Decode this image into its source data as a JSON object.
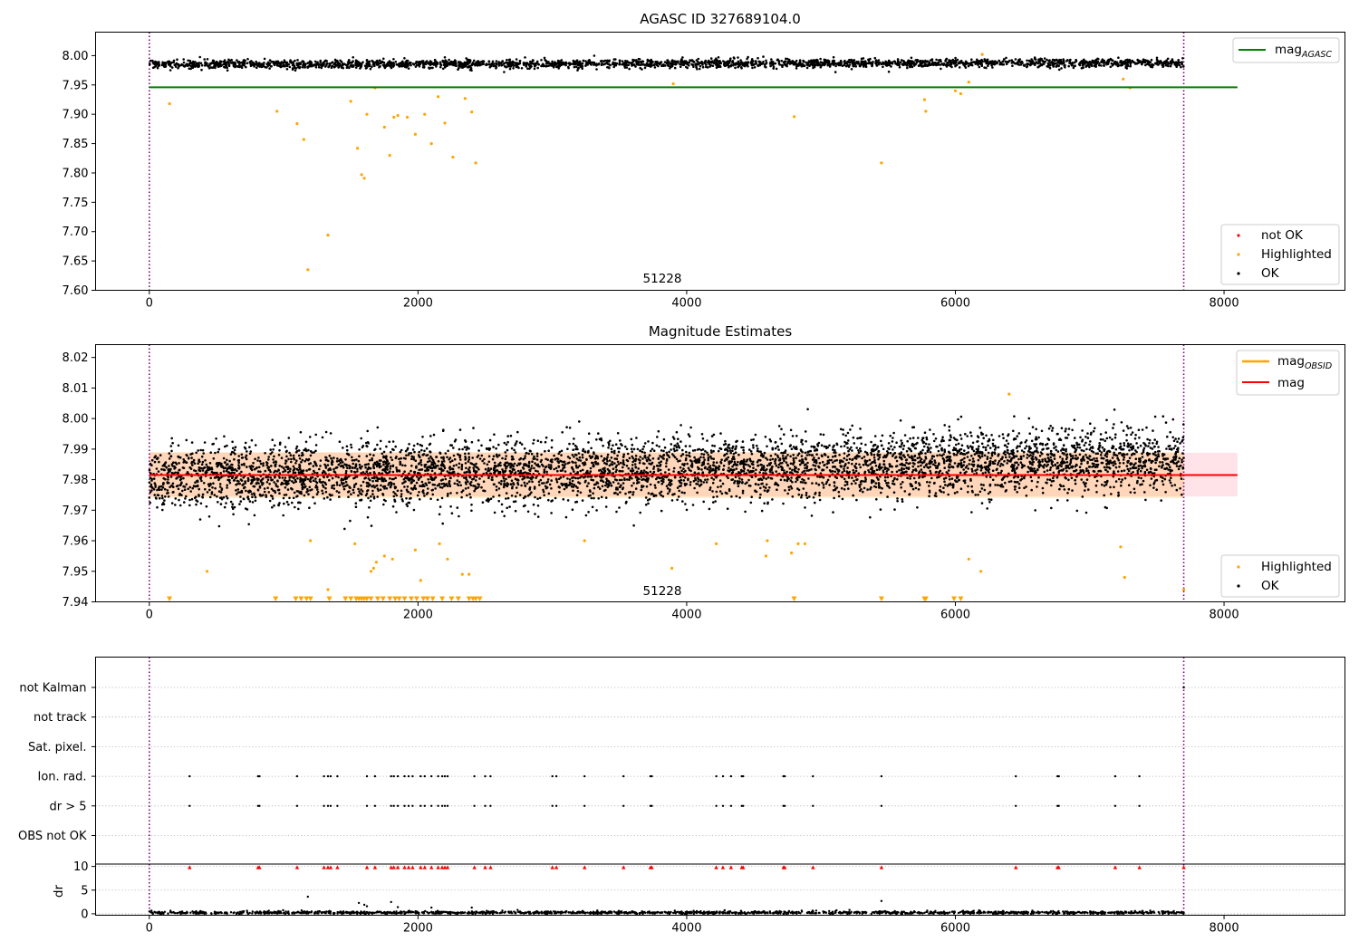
{
  "chart_data": [
    {
      "type": "scatter",
      "title": "AGASC ID 327689104.0",
      "xlabel": "",
      "ylabel": "",
      "xlim": [
        -400,
        8900
      ],
      "ylim": [
        7.6,
        8.04
      ],
      "xticks": [
        0,
        2000,
        4000,
        6000,
        8000
      ],
      "xtick_labels": [
        "0",
        "2000",
        "4000",
        "6000",
        "8000"
      ],
      "yticks": [
        7.6,
        7.65,
        7.7,
        7.75,
        7.8,
        7.85,
        7.9,
        7.95,
        8.0
      ],
      "ytick_labels": [
        "7.60",
        "7.65",
        "7.70",
        "7.75",
        "7.80",
        "7.85",
        "7.90",
        "7.95",
        "8.00"
      ],
      "grid": false,
      "vlines": [
        0,
        7700
      ],
      "vline_color": "#800080",
      "hline": {
        "name": "mag",
        "subscript": "AGASC",
        "y": 7.946,
        "x_range": [
          0,
          8100
        ],
        "color": "#008000"
      },
      "annotation": {
        "text": "51228",
        "x": 3850,
        "y": 7.62
      },
      "ok_band": {
        "center_start": 7.985,
        "center_end": 7.988,
        "half_width": 0.008,
        "x_range": [
          0,
          7700
        ],
        "count": 2600,
        "color": "#000000"
      },
      "highlighted_points": {
        "x": [
          150,
          950,
          1100,
          1150,
          1180,
          1330,
          1500,
          1550,
          1580,
          1600,
          1620,
          1680,
          1750,
          1790,
          1820,
          1850,
          1920,
          1980,
          2050,
          2100,
          2150,
          2200,
          2260,
          2350,
          2400,
          2430,
          3900,
          4800,
          5450,
          5770,
          5780,
          6000,
          6040,
          6100,
          6200,
          7250,
          7300
        ],
        "y": [
          7.918,
          7.905,
          7.884,
          7.857,
          7.635,
          7.694,
          7.922,
          7.842,
          7.797,
          7.791,
          7.9,
          7.945,
          7.878,
          7.83,
          7.895,
          7.898,
          7.895,
          7.866,
          7.9,
          7.85,
          7.93,
          7.885,
          7.827,
          7.927,
          7.904,
          7.817,
          7.952,
          7.896,
          7.817,
          7.925,
          7.905,
          7.94,
          7.935,
          7.955,
          8.002,
          7.96,
          7.945
        ],
        "color": "#FFA500"
      },
      "notok_points": {
        "x": [],
        "y": [],
        "color": "#FF0000"
      },
      "legend_upper": {
        "placement": "top-right",
        "entries": [
          {
            "label": "mag",
            "subscript": "AGASC",
            "color": "#008000"
          }
        ]
      },
      "legend_lower": {
        "placement": "bottom-right",
        "entries": [
          {
            "label": "not OK",
            "color": "#FF0000"
          },
          {
            "label": "Highlighted",
            "color": "#FFA500"
          },
          {
            "label": "OK",
            "color": "#000000"
          }
        ]
      }
    },
    {
      "type": "scatter",
      "title": "Magnitude Estimates",
      "xlabel": "",
      "ylabel": "",
      "xlim": [
        -400,
        8900
      ],
      "ylim": [
        7.94,
        8.0242
      ],
      "xticks": [
        0,
        2000,
        4000,
        6000,
        8000
      ],
      "xtick_labels": [
        "0",
        "2000",
        "4000",
        "6000",
        "8000"
      ],
      "yticks": [
        7.94,
        7.95,
        7.96,
        7.97,
        7.98,
        7.99,
        8.0,
        8.01,
        8.02
      ],
      "ytick_labels": [
        "7.94",
        "7.95",
        "7.96",
        "7.97",
        "7.98",
        "7.99",
        "8.00",
        "8.01",
        "8.02"
      ],
      "grid": false,
      "vlines": [
        0,
        7700
      ],
      "vline_color": "#800080",
      "mag_line": {
        "name": "mag",
        "y": 7.9815,
        "x_range": [
          0,
          8100
        ],
        "color": "#FF0000",
        "band": [
          7.9745,
          7.9888
        ],
        "band_color": "#FFC0CB"
      },
      "obsid_band": {
        "name": "mag",
        "subscript": "OBSID",
        "center": 7.9815,
        "half_width": 0.0075,
        "x_range": [
          0,
          7700
        ],
        "color": "#FFA500"
      },
      "annotation": {
        "text": "51228",
        "x": 3850,
        "y": 7.9425
      },
      "ok_band": {
        "center_start": 7.9805,
        "center_end": 7.9865,
        "half_width": 0.0115,
        "x_range": [
          0,
          7700
        ],
        "count": 5200,
        "color": "#000000"
      },
      "highlighted_points": {
        "x": [
          430,
          1200,
          1330,
          1530,
          1650,
          1670,
          1690,
          1750,
          1810,
          1980,
          2020,
          2160,
          2220,
          2330,
          2380,
          3240,
          3890,
          4220,
          4590,
          4600,
          4780,
          4830,
          4880,
          6100,
          6190,
          6400,
          7230,
          7260,
          7700
        ],
        "y": [
          7.95,
          7.96,
          7.944,
          7.959,
          7.95,
          7.951,
          7.953,
          7.955,
          7.954,
          7.957,
          7.947,
          7.959,
          7.954,
          7.949,
          7.949,
          7.96,
          7.951,
          7.959,
          7.955,
          7.96,
          7.956,
          7.959,
          7.959,
          7.954,
          7.95,
          8.008,
          7.958,
          7.948,
          7.944
        ],
        "color": "#FFA500"
      },
      "lower_limit_markers": {
        "y": 7.94,
        "x": [
          150,
          940,
          1090,
          1130,
          1170,
          1200,
          1340,
          1460,
          1500,
          1540,
          1560,
          1580,
          1600,
          1620,
          1650,
          1700,
          1740,
          1790,
          1830,
          1860,
          1900,
          1950,
          1990,
          2040,
          2070,
          2110,
          2180,
          2250,
          2300,
          2380,
          2410,
          2430,
          2460,
          4800,
          5450,
          5770,
          5780,
          5990,
          6040
        ],
        "color": "#FFA500"
      },
      "legend_upper": {
        "placement": "top-right",
        "entries": [
          {
            "label": "mag",
            "subscript": "OBSID",
            "color": "#FFA500"
          },
          {
            "label": "mag",
            "color": "#FF0000"
          }
        ]
      },
      "legend_lower": {
        "placement": "bottom-right",
        "entries": [
          {
            "label": "Highlighted",
            "color": "#FFA500"
          },
          {
            "label": "OK",
            "color": "#000000"
          }
        ]
      }
    },
    {
      "type": "scatter",
      "title": "",
      "xlabel": "",
      "ylabel": "",
      "xlim": [
        -400,
        8900
      ],
      "grid": true,
      "vlines": [
        0,
        7700
      ],
      "vline_color": "#800080",
      "flag_rows": [
        "not Kalman",
        "not track",
        "Sat. pixel.",
        "Ion. rad.",
        "dr > 5",
        "OBS not OK"
      ],
      "flag_points": [
        {
          "flag": "Ion. rad.",
          "x": [
            300,
            810,
            820,
            1100,
            1300,
            1330,
            1350,
            1400,
            1620,
            1680,
            1800,
            1820,
            1850,
            1900,
            1930,
            1960,
            2020,
            2050,
            2100,
            2150,
            2180,
            2200,
            2220,
            2420,
            2500,
            2540,
            3000,
            3030,
            3240,
            3530,
            3730,
            3740,
            4220,
            4270,
            4330,
            4410,
            4420,
            4720,
            4730,
            4940,
            5450,
            6450,
            6760,
            6770,
            7190,
            7370
          ]
        },
        {
          "flag": "dr > 5",
          "x": [
            300,
            810,
            820,
            1100,
            1300,
            1330,
            1350,
            1400,
            1620,
            1680,
            1800,
            1820,
            1850,
            1900,
            1930,
            1960,
            2020,
            2050,
            2100,
            2150,
            2180,
            2200,
            2220,
            2420,
            2500,
            2540,
            3000,
            3030,
            3240,
            3530,
            3730,
            3740,
            4220,
            4270,
            4330,
            4410,
            4420,
            4720,
            4730,
            4940,
            5450,
            6450,
            6760,
            6770,
            7190,
            7370
          ]
        },
        {
          "flag": "not Kalman",
          "x": [
            7700
          ]
        }
      ],
      "flag_color": "#000000"
    },
    {
      "type": "scatter",
      "title": "",
      "xlabel": "",
      "ylabel": "dr",
      "xlim": [
        -400,
        8900
      ],
      "ylim": [
        -0.3,
        10.5
      ],
      "yticks": [
        0,
        5,
        10
      ],
      "ytick_labels": [
        "0",
        "5",
        "10"
      ],
      "xticks": [
        0,
        2000,
        4000,
        6000,
        8000
      ],
      "xtick_labels": [
        "0",
        "2000",
        "4000",
        "6000",
        "8000"
      ],
      "grid": true,
      "vlines": [
        0,
        7700
      ],
      "vline_color": "#800080",
      "dr_baseline": {
        "center": 0.25,
        "half_width": 0.3,
        "count": 1600,
        "x_range": [
          0,
          7700
        ],
        "color": "#000000"
      },
      "dr_points": {
        "x": [
          1180,
          1560,
          1600,
          1620,
          1800,
          1850,
          2100,
          2400,
          5450
        ],
        "y": [
          3.6,
          2.3,
          1.9,
          1.6,
          2.5,
          1.4,
          1.3,
          1.3,
          2.7
        ]
      },
      "clipped_markers": {
        "y": 10,
        "x": [
          300,
          810,
          820,
          1100,
          1300,
          1330,
          1350,
          1400,
          1620,
          1680,
          1800,
          1820,
          1850,
          1900,
          1930,
          1960,
          2020,
          2050,
          2100,
          2150,
          2180,
          2200,
          2220,
          2420,
          2500,
          2540,
          3000,
          3030,
          3240,
          3530,
          3730,
          3740,
          4220,
          4270,
          4330,
          4410,
          4420,
          4720,
          4730,
          4940,
          5450,
          6450,
          6760,
          6770,
          7190,
          7370,
          7700
        ],
        "color": "#FF0000"
      }
    }
  ]
}
